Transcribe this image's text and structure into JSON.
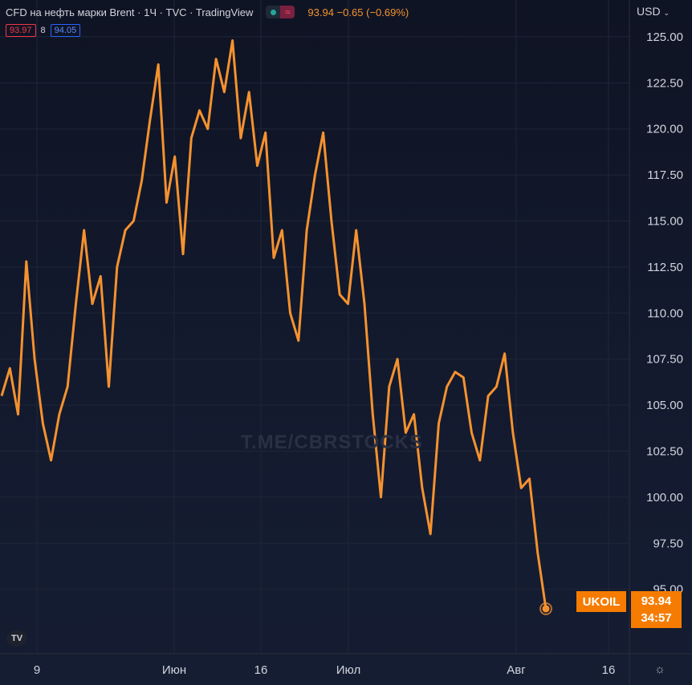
{
  "header": {
    "title": "CFD на нефть марки Brent · 1Ч · TVC · TradingView",
    "wave_icon": "≈",
    "last": "93.94",
    "change": "−0.65",
    "change_pct": "(−0.69%)",
    "bid": "93.97",
    "spread": "8",
    "ask": "94.05"
  },
  "axis": {
    "currency": "USD"
  },
  "tags": {
    "symbol": "UKOIL",
    "price": "93.94",
    "countdown": "34:57"
  },
  "watermark": "T.ME/CBRSTOCKS",
  "logo_text": "TV",
  "settings_icon": "☼",
  "colors": {
    "line": "#f5922f",
    "background": "#131722",
    "grid": "#1f2638",
    "tag": "#f57c00"
  },
  "chart_data": {
    "type": "line",
    "title": "CFD на нефть марки Brent",
    "interval": "1Ч",
    "series": [
      {
        "name": "UKOIL",
        "x": [
          "05-05",
          "05-06",
          "05-09",
          "05-10",
          "05-11",
          "05-12",
          "05-13",
          "05-16",
          "05-17",
          "05-18",
          "05-19",
          "05-20",
          "05-23",
          "05-24",
          "05-25",
          "05-26",
          "05-27",
          "05-30",
          "05-31",
          "06-01",
          "06-02",
          "06-03",
          "06-06",
          "06-07",
          "06-08",
          "06-09",
          "06-10",
          "06-13",
          "06-14",
          "06-15",
          "06-16",
          "06-17",
          "06-20",
          "06-21",
          "06-22",
          "06-23",
          "06-24",
          "06-27",
          "06-28",
          "06-29",
          "06-30",
          "07-01",
          "07-04",
          "07-05",
          "07-06",
          "07-07",
          "07-08",
          "07-11",
          "07-12",
          "07-13",
          "07-14",
          "07-15",
          "07-18",
          "07-19",
          "07-20",
          "07-21",
          "07-22",
          "07-25",
          "07-26",
          "07-27",
          "07-28",
          "07-29",
          "08-01",
          "08-02",
          "08-03",
          "08-04",
          "08-05"
        ],
        "values": [
          105.5,
          107,
          104.5,
          112.8,
          107.5,
          104.0,
          102.0,
          104.5,
          106.0,
          110.5,
          114.5,
          110.5,
          112.0,
          106.0,
          112.5,
          114.5,
          115.0,
          117.2,
          120.5,
          123.5,
          116.0,
          118.5,
          113.2,
          119.5,
          121.0,
          120.0,
          123.8,
          122.0,
          124.8,
          119.5,
          122.0,
          118.0,
          119.8,
          113.0,
          114.5,
          110.0,
          108.5,
          114.5,
          117.5,
          119.8,
          115.0,
          111.0,
          110.5,
          114.5,
          110.5,
          104.5,
          100.0,
          106.0,
          107.5,
          103.5,
          104.5,
          100.5,
          98.0,
          104.0,
          106.0,
          106.8,
          106.5,
          103.5,
          102.0,
          105.5,
          106.0,
          107.8,
          103.5,
          100.5,
          101.0,
          97.0,
          93.94
        ]
      }
    ],
    "ylim": [
      91.5,
      127
    ],
    "y_ticks": [
      "95.00",
      "97.50",
      "100.00",
      "102.50",
      "105.00",
      "107.50",
      "110.00",
      "112.50",
      "115.00",
      "117.50",
      "120.00",
      "122.50",
      "125.00"
    ],
    "x_tick_labels": [
      "9",
      "Июн",
      "16",
      "Июл",
      "Авг",
      "16"
    ],
    "last_value": 93.94,
    "grid": true
  }
}
